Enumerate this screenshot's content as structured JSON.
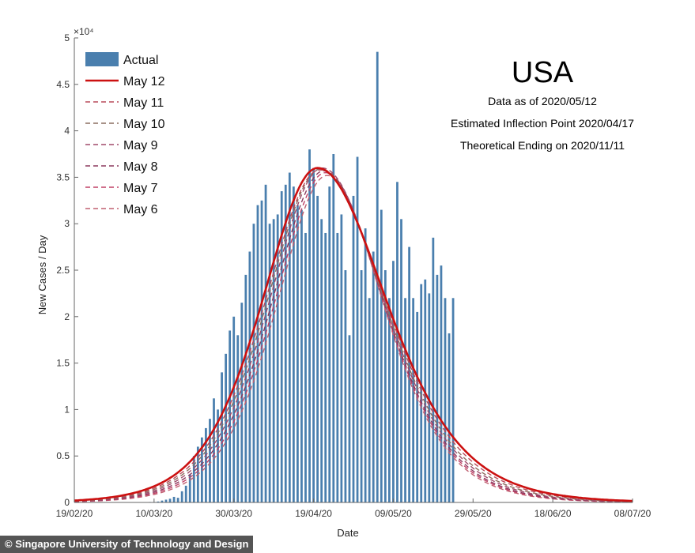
{
  "chart_data": {
    "type": "bar",
    "title": "USA",
    "info_lines": [
      "Data as of 2020/05/12",
      "Estimated Inflection Point 2020/04/17",
      "Theoretical Ending on 2020/11/11"
    ],
    "xlabel": "Date",
    "ylabel": "New Cases / Day",
    "y_exponent_label": "×10⁴",
    "ylim": [
      0,
      5
    ],
    "yticks": [
      "0",
      "0.5",
      "1",
      "1.5",
      "2",
      "2.5",
      "3",
      "3.5",
      "4",
      "4.5",
      "5"
    ],
    "xticks": [
      "19/02/20",
      "10/03/20",
      "30/03/20",
      "19/04/20",
      "09/05/20",
      "29/05/20",
      "18/06/20",
      "08/07/20"
    ],
    "x_range_days": [
      0,
      140
    ],
    "legend_position": "top-left",
    "bar_color": "#4a7fae",
    "actual_series": {
      "name": "Actual",
      "day_start": 0,
      "values": [
        0,
        0,
        0,
        0,
        0,
        0,
        0,
        0,
        0,
        0,
        0,
        0,
        0,
        0.001,
        0.002,
        0.002,
        0.003,
        0.003,
        0.004,
        0.005,
        0.005,
        0.01,
        0.02,
        0.03,
        0.04,
        0.06,
        0.05,
        0.12,
        0.18,
        0.3,
        0.5,
        0.6,
        0.7,
        0.8,
        0.9,
        1.12,
        1.0,
        1.4,
        1.6,
        1.85,
        2.0,
        1.8,
        2.15,
        2.45,
        2.7,
        3.0,
        3.2,
        3.25,
        3.42,
        3.0,
        3.05,
        3.1,
        3.35,
        3.42,
        3.55,
        3.4,
        3.2,
        3.15,
        2.9,
        3.8,
        3.6,
        3.3,
        3.05,
        2.9,
        3.4,
        3.75,
        2.9,
        3.1,
        2.5,
        1.8,
        3.3,
        3.72,
        2.5,
        2.95,
        2.2,
        2.7,
        4.85,
        3.15,
        2.5,
        2.2,
        2.6,
        3.45,
        3.05,
        2.2,
        2.75,
        2.2,
        2.05,
        2.35,
        2.4,
        2.25,
        2.85,
        2.45,
        2.55,
        2.2,
        1.82,
        2.2
      ]
    },
    "fit_series": [
      {
        "name": "May 12",
        "style": "solid",
        "color": "#cc1111",
        "peak": 3.6,
        "peak_day": 61,
        "width_left": 14,
        "width_right": 17.5
      },
      {
        "name": "May 11",
        "style": "dashed",
        "color": "#b84a5a",
        "peak": 3.58,
        "peak_day": 61.5,
        "width_left": 13.8,
        "width_right": 16.8
      },
      {
        "name": "May 10",
        "style": "dashed",
        "color": "#8c6e60",
        "peak": 3.59,
        "peak_day": 61.8,
        "width_left": 13.6,
        "width_right": 16.2
      },
      {
        "name": "May 9",
        "style": "dashed",
        "color": "#a04a6a",
        "peak": 3.6,
        "peak_day": 62.2,
        "width_left": 13.4,
        "width_right": 15.7
      },
      {
        "name": "May 8",
        "style": "dashed",
        "color": "#8c3a5e",
        "peak": 3.57,
        "peak_day": 62.6,
        "width_left": 13.2,
        "width_right": 15.2
      },
      {
        "name": "May 7",
        "style": "dashed",
        "color": "#c04066",
        "peak": 3.55,
        "peak_day": 63,
        "width_left": 13.0,
        "width_right": 14.8
      },
      {
        "name": "May 6",
        "style": "dashed",
        "color": "#c06070",
        "peak": 3.52,
        "peak_day": 63.4,
        "width_left": 12.8,
        "width_right": 14.4
      }
    ]
  },
  "credit": "© Singapore University of Technology and Design"
}
